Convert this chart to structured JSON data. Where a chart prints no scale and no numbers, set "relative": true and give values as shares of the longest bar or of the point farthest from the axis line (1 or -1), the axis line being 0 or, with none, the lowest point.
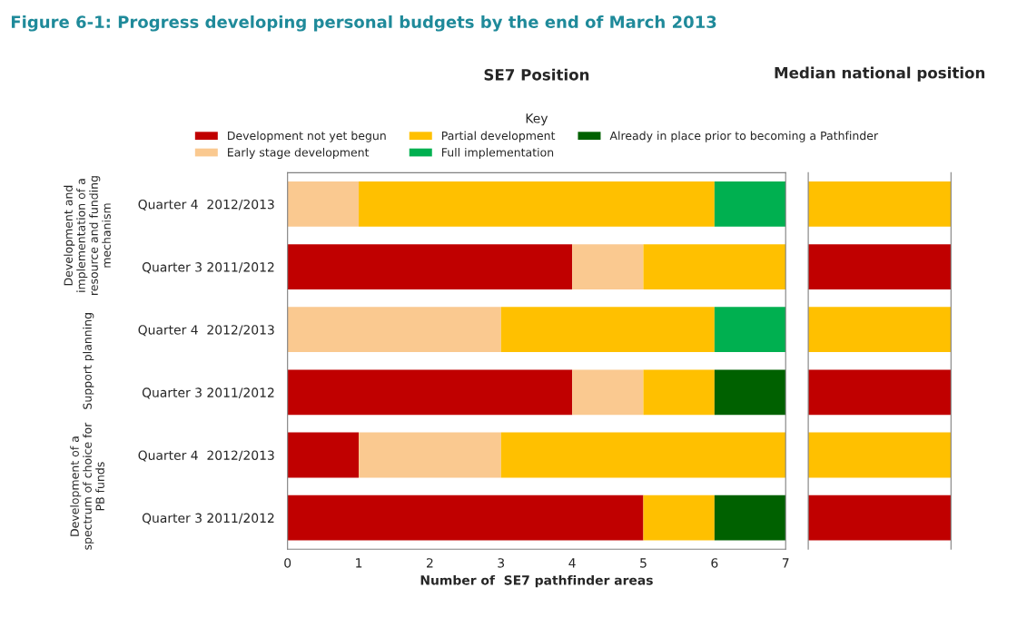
{
  "chart_data": [
    {
      "type": "bar",
      "orientation": "horizontal",
      "stacked": true,
      "title": "Figure 6-1: Progress developing personal budgets by the end of March 2013",
      "subtitle": "SE7 Position",
      "xlabel": "Number of  SE7 pathfinder areas",
      "legend_title": "Key",
      "legend": "top",
      "categories": [
        "Quarter 4  2012/2013",
        "Quarter 3 2011/2012",
        "Quarter 4  2012/2013",
        "Quarter 3 2011/2012",
        "Quarter 4  2012/2013",
        "Quarter 3 2011/2012"
      ],
      "annotations": [
        "Development and implementation of a resource and funding mechanism",
        "Support planning",
        "Development of a spectrum of choice for PB funds"
      ],
      "xlim": [
        0,
        7
      ],
      "xticks": [
        0,
        1,
        2,
        3,
        4,
        5,
        6,
        7
      ],
      "grid": false,
      "series": [
        {
          "name": "Development not yet begun",
          "color": "#c00000",
          "values": [
            0,
            4,
            0,
            4,
            1,
            5
          ]
        },
        {
          "name": "Early stage development",
          "color": "#fac990",
          "values": [
            1,
            1,
            3,
            1,
            2,
            0
          ]
        },
        {
          "name": "Partial development",
          "color": "#ffc000",
          "values": [
            5,
            2,
            3,
            1,
            4,
            1
          ]
        },
        {
          "name": "Full implementation",
          "color": "#00b050",
          "values": [
            1,
            0,
            1,
            0,
            0,
            0
          ]
        },
        {
          "name": "Already in place prior to becoming a Pathfinder",
          "color": "#006100",
          "values": [
            0,
            0,
            0,
            1,
            0,
            1
          ]
        }
      ]
    },
    {
      "type": "bar",
      "orientation": "horizontal",
      "relative": true,
      "title": "Median national position",
      "categories": [
        null,
        null,
        null,
        null,
        null,
        null
      ],
      "values": [
        1,
        1,
        1,
        1,
        1,
        1
      ],
      "colors": [
        "#ffc000",
        "#c00000",
        "#ffc000",
        "#c00000",
        "#ffc000",
        "#c00000"
      ]
    }
  ]
}
